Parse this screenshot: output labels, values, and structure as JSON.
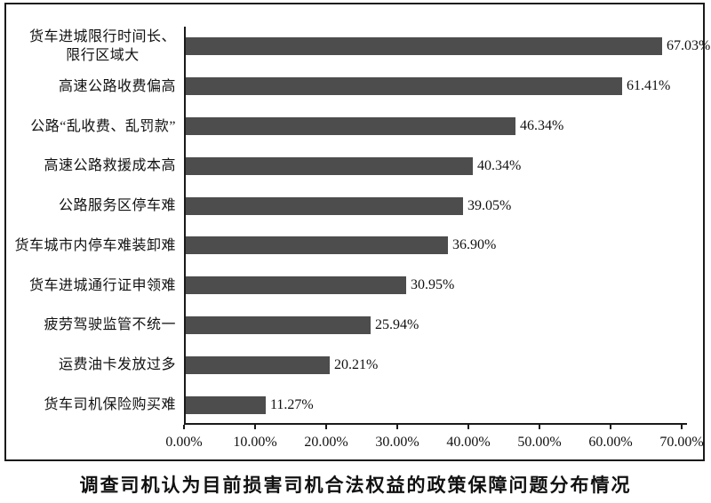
{
  "chart_data": {
    "type": "bar",
    "orientation": "horizontal",
    "title": "调查司机认为目前损害司机合法权益的政策保障问题分布情况",
    "categories": [
      "货车进城限行时间长、\n限行区域大",
      "高速公路收费偏高",
      "公路“乱收费、乱罚款”",
      "高速公路救援成本高",
      "公路服务区停车难",
      "货车城市内停车难装卸难",
      "货车进城通行证申领难",
      "疲劳驾驶监管不统一",
      "运费油卡发放过多",
      "货车司机保险购买难"
    ],
    "values": [
      67.03,
      61.41,
      46.34,
      40.34,
      39.05,
      36.9,
      30.95,
      25.94,
      20.21,
      11.27
    ],
    "value_labels": [
      "67.03%",
      "61.41%",
      "46.34%",
      "40.34%",
      "39.05%",
      "36.90%",
      "30.95%",
      "25.94%",
      "20.21%",
      "11.27%"
    ],
    "x_tick_labels": [
      "0.00%",
      "10.00%",
      "20.00%",
      "30.00%",
      "40.00%",
      "50.00%",
      "60.00%",
      "70.00%"
    ],
    "xlim": [
      0,
      70
    ],
    "xlabel": "",
    "ylabel": "",
    "grid": false,
    "legend": "none",
    "sort_order": "descending",
    "bar_color": "#4d4d4d",
    "axis_color": "#1a1a1a",
    "text_color": "#111111"
  }
}
